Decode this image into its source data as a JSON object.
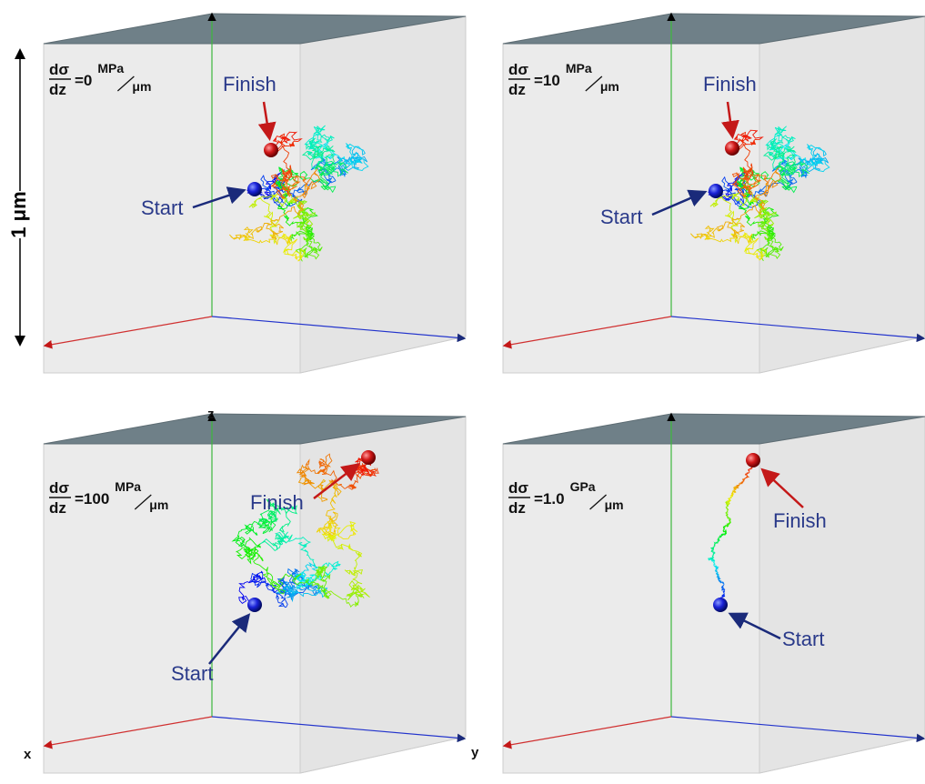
{
  "scale_label": "1 μm",
  "axis_labels": {
    "x": "x",
    "y": "y",
    "z": "z"
  },
  "panels": [
    {
      "numerator": "dσ",
      "denominator": "dz",
      "value": "=0",
      "unit": "MPa",
      "per": "μm",
      "finish": "Finish",
      "start": "Start"
    },
    {
      "numerator": "dσ",
      "denominator": "dz",
      "value": "=10",
      "unit": "MPa",
      "per": "μm",
      "finish": "Finish",
      "start": "Start"
    },
    {
      "numerator": "dσ",
      "denominator": "dz",
      "value": "=100",
      "unit": "MPa",
      "per": "μm",
      "finish": "Finish",
      "start": "Start"
    },
    {
      "numerator": "dσ",
      "denominator": "dz",
      "value": "=1.0",
      "unit": "GPa",
      "per": "μm",
      "finish": "Finish",
      "start": "Start"
    }
  ]
}
